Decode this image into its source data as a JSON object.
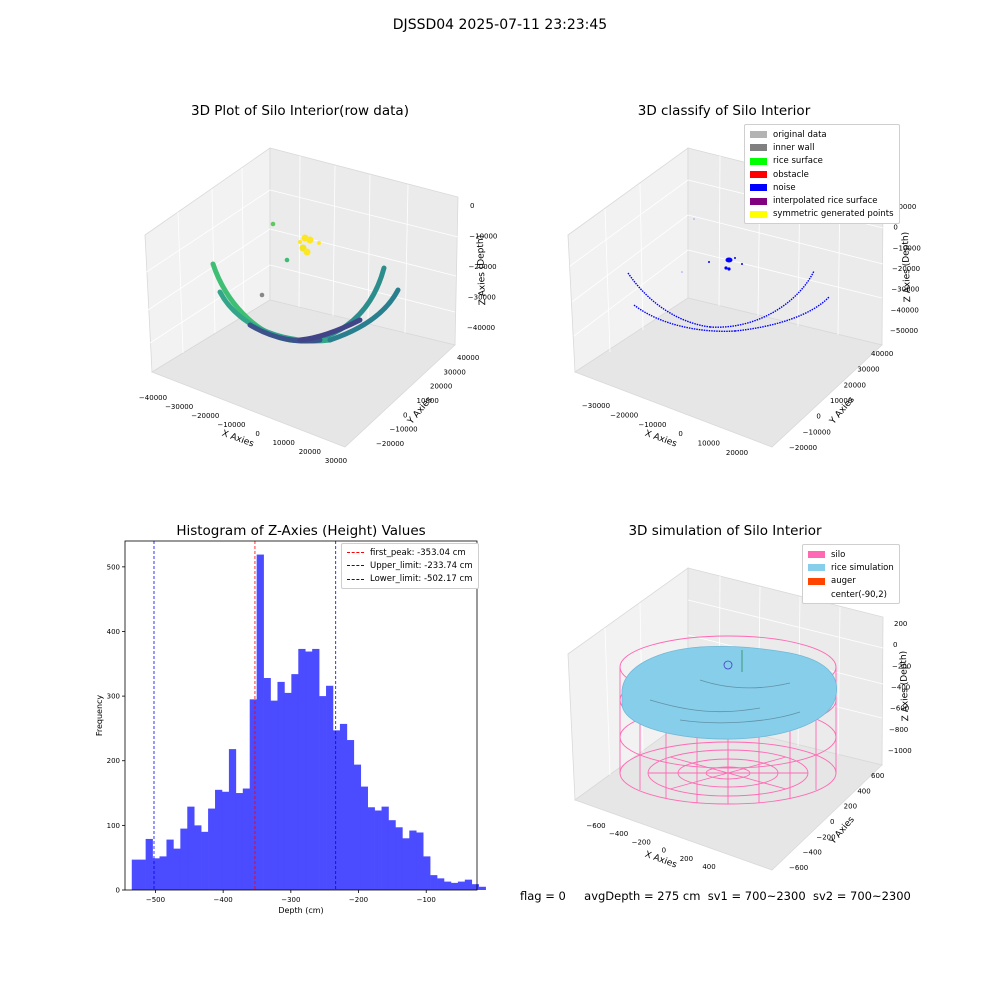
{
  "figure": {
    "suptitle": "DJSSD04 2025-07-11 23:23:45"
  },
  "status": {
    "flag": "flag = 0",
    "avg_depth": "avgDepth = 275 cm",
    "sv1": "sv1 = 700~2300",
    "sv2": "sv2 = 700~2300"
  },
  "panel_raw": {
    "title": "3D Plot of Silo Interior(row data)",
    "xlabel": "X Axies",
    "ylabel": "Y Axies",
    "zlabel": "Z Axies (Depth)",
    "x_ticks": [
      "−40000",
      "−30000",
      "−20000",
      "−10000",
      "0",
      "10000",
      "20000",
      "30000"
    ],
    "y_ticks": [
      "−20000",
      "−10000",
      "0",
      "10000",
      "20000",
      "30000",
      "40000"
    ],
    "z_ticks": [
      "0",
      "−10000",
      "−20000",
      "−30000",
      "−40000"
    ]
  },
  "panel_classify": {
    "title": "3D classify of Silo Interior",
    "xlabel": "X Axies",
    "ylabel": "Y Axies",
    "zlabel": "Z Axies (Depth)",
    "x_ticks": [
      "−30000",
      "−20000",
      "−10000",
      "0",
      "10000",
      "20000"
    ],
    "y_ticks": [
      "−20000",
      "−10000",
      "0",
      "10000",
      "20000",
      "30000",
      "40000"
    ],
    "z_ticks": [
      "10000",
      "0",
      "−10000",
      "−20000",
      "−30000",
      "−40000",
      "−50000"
    ],
    "legend": [
      {
        "label": "original data",
        "color": "#b3b3b3"
      },
      {
        "label": "inner wall",
        "color": "#808080"
      },
      {
        "label": "rice surface",
        "color": "#00ff00"
      },
      {
        "label": "obstacle",
        "color": "#ff0000"
      },
      {
        "label": "noise",
        "color": "#0000ff"
      },
      {
        "label": "interpolated rice surface",
        "color": "#800080"
      },
      {
        "label": "symmetric generated points",
        "color": "#ffff00"
      }
    ]
  },
  "panel_sim": {
    "title": "3D simulation of Silo Interior",
    "xlabel": "X Axies",
    "ylabel": "Y Axies",
    "zlabel": "Z Axies (Depth)",
    "x_ticks": [
      "−600",
      "−400",
      "−200",
      "0",
      "200",
      "400"
    ],
    "y_ticks": [
      "−600",
      "−400",
      "−200",
      "0",
      "200",
      "400",
      "600"
    ],
    "z_ticks": [
      "200",
      "0",
      "−200",
      "−400",
      "−600",
      "−800",
      "−1000"
    ],
    "legend": [
      {
        "label": "silo",
        "color": "#ff69b4"
      },
      {
        "label": "rice simulation",
        "color": "#87ceeb"
      },
      {
        "label": "auger",
        "color": "#ff4500"
      },
      {
        "label": "center(-90,2)",
        "color": ""
      }
    ]
  },
  "chart_data": [
    {
      "type": "scatter",
      "title": "3D Plot of Silo Interior(row data)",
      "xlabel": "X Axies",
      "ylabel": "Y Axies",
      "zlabel": "Z Axies (Depth)",
      "xlim": [
        -40000,
        30000
      ],
      "ylim": [
        -20000,
        40000
      ],
      "zlim": [
        -45000,
        0
      ]
    },
    {
      "type": "scatter",
      "title": "3D classify of Silo Interior",
      "xlabel": "X Axies",
      "ylabel": "Y Axies",
      "zlabel": "Z Axies (Depth)",
      "xlim": [
        -30000,
        20000
      ],
      "ylim": [
        -20000,
        40000
      ],
      "zlim": [
        -55000,
        10000
      ],
      "legend": [
        "original data",
        "inner wall",
        "rice surface",
        "obstacle",
        "noise",
        "interpolated rice surface",
        "symmetric generated points"
      ]
    },
    {
      "type": "bar",
      "title": "Histogram of Z-Axies (Height) Values",
      "xlabel": "Depth (cm)",
      "ylabel": "Frequency",
      "bar_color": "#4b4bff",
      "xlim": [
        -545,
        -25
      ],
      "ylim": [
        0,
        540
      ],
      "x_ticks": [
        -500,
        -400,
        -300,
        -200,
        -100
      ],
      "y_ticks": [
        0,
        100,
        200,
        300,
        400,
        500
      ],
      "bin_start": -535,
      "bin_width": 10.25,
      "values": [
        47,
        47,
        79,
        49,
        52,
        78,
        64,
        95,
        129,
        100,
        90,
        126,
        155,
        152,
        218,
        150,
        157,
        295,
        519,
        328,
        293,
        322,
        305,
        334,
        373,
        369,
        373,
        300,
        316,
        247,
        257,
        232,
        194,
        160,
        128,
        123,
        129,
        108,
        97,
        80,
        92,
        89,
        52,
        23,
        18,
        13,
        11,
        13,
        16,
        9,
        5
      ],
      "vlines": [
        {
          "x": -353.04,
          "color": "#ff0000",
          "label": "first_peak: -353.04 cm"
        },
        {
          "x": -233.74,
          "color": "#0000ff",
          "label": "Upper_limit: -233.74 cm"
        },
        {
          "x": -502.17,
          "color": "#0000ff",
          "label": "Lower_limit: -502.17 cm"
        }
      ],
      "legend_position": "upper right"
    },
    {
      "type": "area",
      "title": "3D simulation of Silo Interior",
      "xlabel": "X Axies",
      "ylabel": "Y Axies",
      "zlabel": "Z Axies (Depth)",
      "xlim": [
        -700,
        500
      ],
      "ylim": [
        -700,
        700
      ],
      "zlim": [
        -1100,
        300
      ],
      "legend": [
        "silo",
        "rice simulation",
        "auger",
        "center(-90,2)"
      ]
    }
  ]
}
